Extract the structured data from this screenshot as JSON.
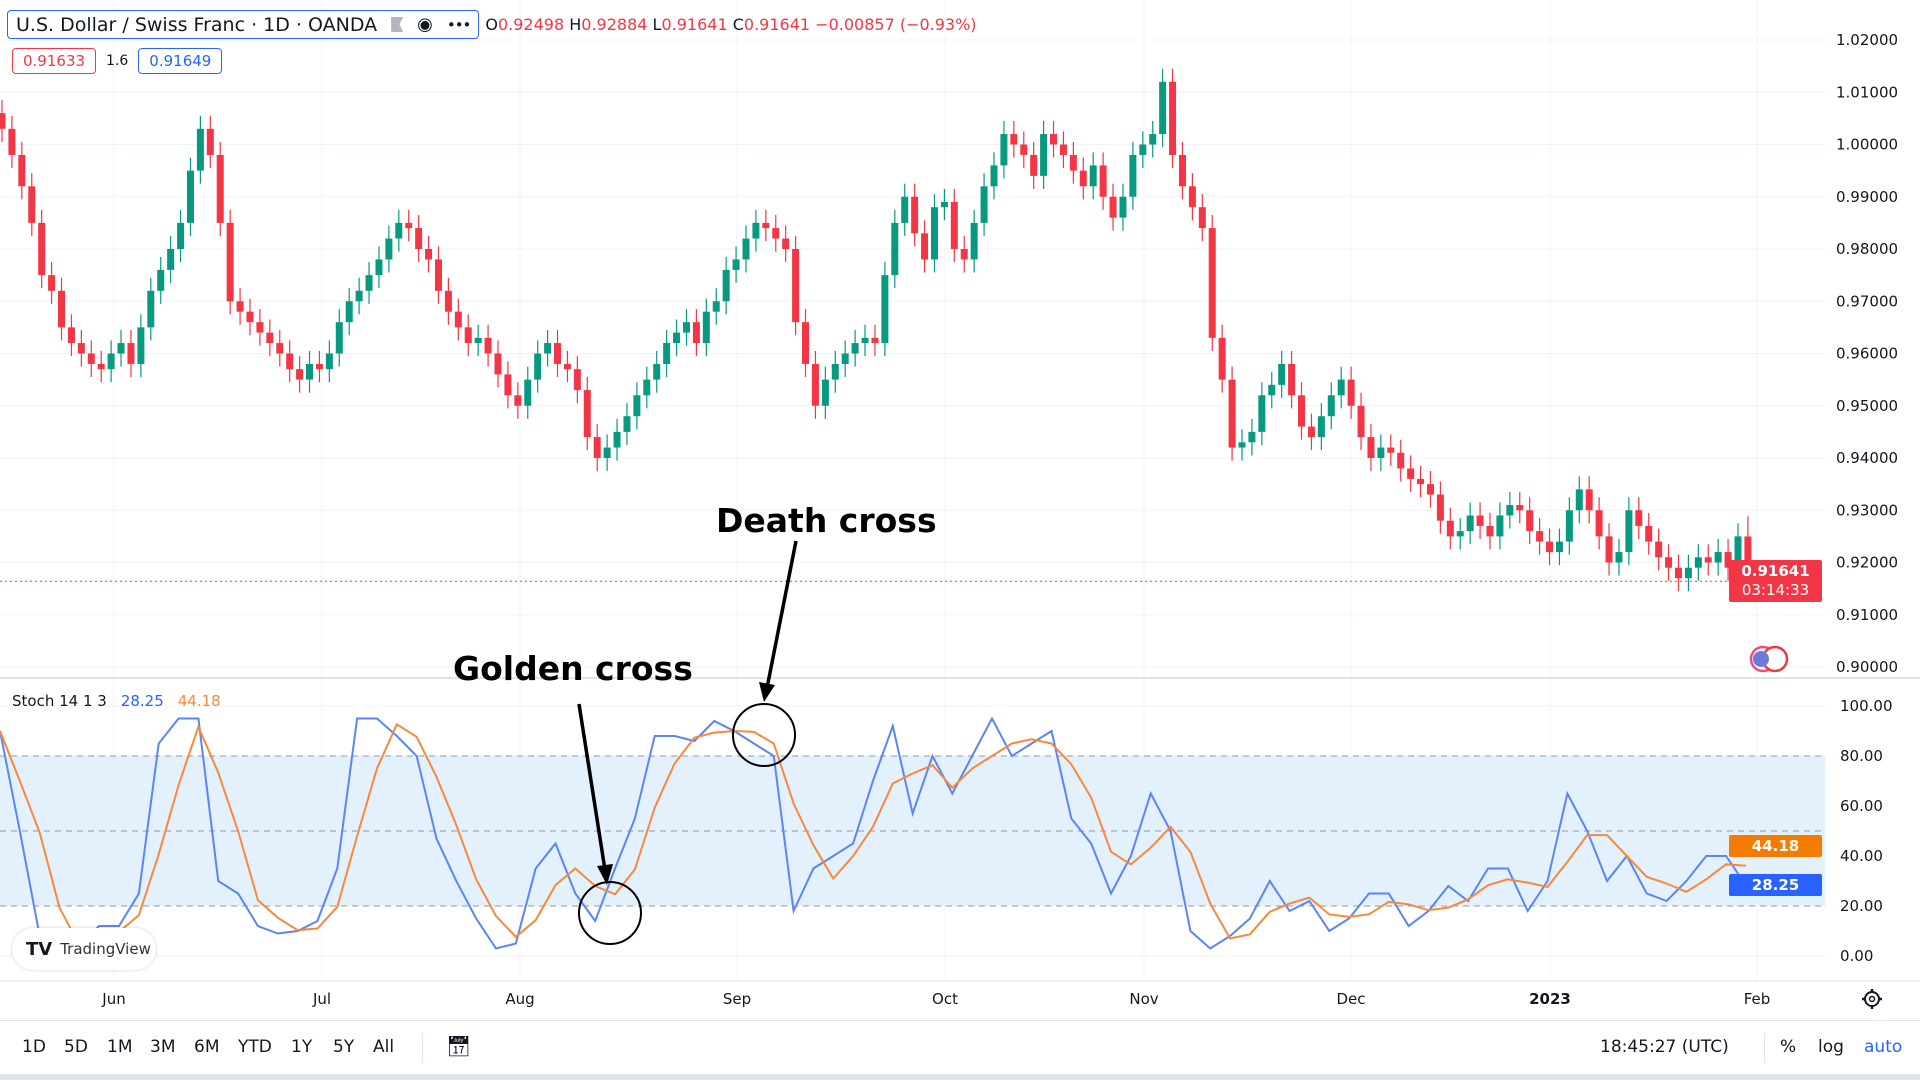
{
  "header": {
    "symbol_title": "U.S. Dollar / Swiss Franc · 1D · OANDA",
    "icons": [
      "flag-icon",
      "eye-icon",
      "more-icon"
    ],
    "ohlc": {
      "o_label": "O",
      "o": "0.92498",
      "h_label": "H",
      "h": "0.92884",
      "l_label": "L",
      "l": "0.91641",
      "c_label": "C",
      "c": "0.91641",
      "change": "−0.00857 (−0.93%)"
    },
    "sell_price": "0.91633",
    "spread": "1.6",
    "buy_price": "0.91649"
  },
  "stoch_legend": {
    "name": "Stoch 14 1 3",
    "k": "28.25",
    "d": "44.18"
  },
  "price_tag": {
    "price": "0.91641",
    "countdown": "03:14:33"
  },
  "stoch_tags": {
    "d": "44.18",
    "k": "28.25"
  },
  "annotations": {
    "golden": "Golden cross",
    "death": "Death cross"
  },
  "watermark": "TradingView",
  "toolbar": {
    "ranges": [
      "1D",
      "5D",
      "1M",
      "3M",
      "6M",
      "YTD",
      "1Y",
      "5Y",
      "All"
    ],
    "time": "18:45:27 (UTC)",
    "percent": "%",
    "log": "log",
    "auto": "auto"
  },
  "colors": {
    "up": "#089981",
    "down": "#f23645",
    "k_line": "#5b85f5",
    "d_line": "#f7893b",
    "band": "#e3f1fd"
  },
  "chart_data": [
    {
      "type": "candlestick",
      "title": "U.S. Dollar / Swiss Franc · 1D · OANDA",
      "x_ticks": [
        "Jun",
        "Jul",
        "Aug",
        "Sep",
        "Oct",
        "Nov",
        "Dec",
        "2023",
        "Feb"
      ],
      "y_ticks": [
        "1.02000",
        "1.01000",
        "1.00000",
        "0.99000",
        "0.98000",
        "0.97000",
        "0.96000",
        "0.95000",
        "0.94000",
        "0.93000",
        "0.92000",
        "0.91000",
        "0.90000"
      ],
      "ylim": [
        0.9,
        1.02
      ],
      "grid": true,
      "last_open": 0.92498,
      "last_high": 0.92884,
      "closes": [
        1.003,
        0.998,
        0.992,
        0.985,
        0.975,
        0.972,
        0.965,
        0.962,
        0.96,
        0.958,
        0.957,
        0.96,
        0.962,
        0.958,
        0.965,
        0.972,
        0.976,
        0.98,
        0.985,
        0.995,
        1.003,
        0.998,
        0.985,
        0.97,
        0.968,
        0.966,
        0.964,
        0.962,
        0.96,
        0.957,
        0.955,
        0.958,
        0.957,
        0.96,
        0.966,
        0.97,
        0.972,
        0.975,
        0.978,
        0.982,
        0.985,
        0.984,
        0.98,
        0.978,
        0.972,
        0.968,
        0.965,
        0.962,
        0.963,
        0.96,
        0.956,
        0.952,
        0.95,
        0.955,
        0.96,
        0.962,
        0.958,
        0.957,
        0.953,
        0.944,
        0.94,
        0.942,
        0.945,
        0.948,
        0.952,
        0.955,
        0.958,
        0.962,
        0.964,
        0.966,
        0.962,
        0.968,
        0.97,
        0.976,
        0.978,
        0.982,
        0.985,
        0.984,
        0.982,
        0.98,
        0.966,
        0.958,
        0.95,
        0.955,
        0.958,
        0.96,
        0.962,
        0.963,
        0.962,
        0.975,
        0.985,
        0.99,
        0.983,
        0.978,
        0.988,
        0.989,
        0.98,
        0.978,
        0.985,
        0.992,
        0.996,
        1.002,
        1.0,
        0.998,
        0.994,
        1.002,
        1.0,
        0.998,
        0.995,
        0.992,
        0.996,
        0.99,
        0.986,
        0.99,
        0.998,
        1.0,
        1.002,
        1.012,
        0.998,
        0.992,
        0.988,
        0.984,
        0.963,
        0.955,
        0.942,
        0.943,
        0.945,
        0.952,
        0.954,
        0.958,
        0.952,
        0.946,
        0.944,
        0.948,
        0.952,
        0.955,
        0.95,
        0.944,
        0.94,
        0.942,
        0.941,
        0.938,
        0.936,
        0.935,
        0.933,
        0.928,
        0.925,
        0.926,
        0.929,
        0.927,
        0.925,
        0.929,
        0.931,
        0.93,
        0.926,
        0.924,
        0.922,
        0.924,
        0.93,
        0.934,
        0.93,
        0.925,
        0.92,
        0.922,
        0.93,
        0.927,
        0.924,
        0.921,
        0.919,
        0.917,
        0.919,
        0.921,
        0.92,
        0.922,
        0.919,
        0.925,
        0.91641
      ]
    },
    {
      "type": "line",
      "title": "Stoch 14 1 3",
      "y_ticks": [
        "100.00",
        "80.00",
        "60.00",
        "40.00",
        "20.00",
        "0.00"
      ],
      "ylim": [
        0,
        100
      ],
      "bands": [
        20,
        50,
        80
      ],
      "series": [
        {
          "name": "%K",
          "values": [
            90,
            50,
            8,
            0,
            5,
            12,
            12,
            25,
            85,
            95,
            95,
            30,
            25,
            12,
            9,
            10,
            14,
            35,
            95,
            95,
            88,
            80,
            47,
            30,
            15,
            3,
            5,
            35,
            45,
            25,
            14,
            35,
            55,
            88,
            88,
            86,
            94,
            90,
            85,
            80,
            18,
            35,
            40,
            45,
            70,
            92,
            57,
            80,
            65,
            80,
            95,
            80,
            85,
            90,
            55,
            45,
            25,
            40,
            65,
            50,
            10,
            3,
            8,
            15,
            30,
            18,
            22,
            10,
            15,
            25,
            25,
            12,
            18,
            28,
            22,
            35,
            35,
            18,
            30,
            65,
            50,
            30,
            40,
            25,
            22,
            30,
            40,
            40,
            28.25
          ]
        }
      ]
    }
  ]
}
